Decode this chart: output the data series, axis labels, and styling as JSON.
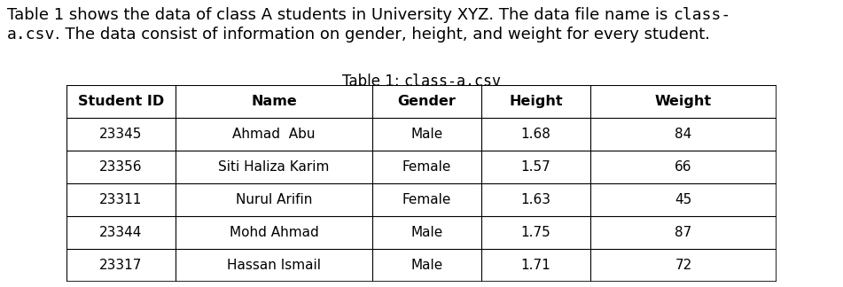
{
  "bg_color": "#ffffff",
  "text_color": "#000000",
  "desc_fontsize": 13,
  "title_fontsize": 12,
  "header_fontsize": 11.5,
  "body_fontsize": 11,
  "columns": [
    "Student ID",
    "Name",
    "Gender",
    "Height",
    "Weight"
  ],
  "rows": [
    [
      "23345",
      "Ahmad  Abu",
      "Male",
      "1.68",
      "84"
    ],
    [
      "23356",
      "Siti Haliza Karim",
      "Female",
      "1.57",
      "66"
    ],
    [
      "23311",
      "Nurul Arifin",
      "Female",
      "1.63",
      "45"
    ],
    [
      "23344",
      "Mohd Ahmad",
      "Male",
      "1.75",
      "87"
    ],
    [
      "23317",
      "Hassan Ismail",
      "Male",
      "1.71",
      "72"
    ]
  ],
  "line1_normal": "Table 1 shows the data of class A students in University XYZ. The data file name is ",
  "line1_mono": "class-",
  "line2_mono": "a.csv",
  "line2_normal": ". The data consist of information on gender, height, and weight for every student.",
  "title_normal": "Table 1: ",
  "title_mono": "class-a.csv"
}
